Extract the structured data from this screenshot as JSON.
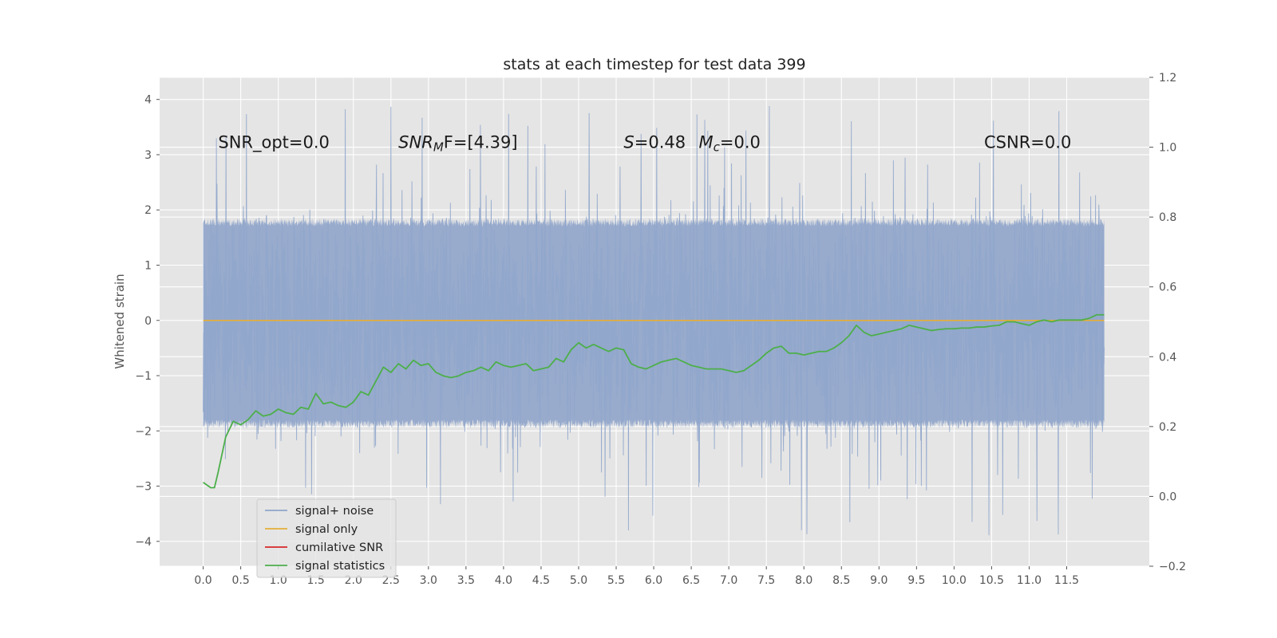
{
  "chart_data": {
    "type": "line",
    "title": "stats at each timestep for test data 399",
    "ylabel": "Whitened strain",
    "xlabel": "",
    "xlim": [
      -0.58,
      12.6
    ],
    "ylim": [
      -4.45,
      4.4
    ],
    "y2lim": [
      -0.2,
      1.2
    ],
    "grid": true,
    "legend_position": "lower-left",
    "x_ticks": [
      0.0,
      0.5,
      1.0,
      1.5,
      2.0,
      2.5,
      3.0,
      3.5,
      4.0,
      4.5,
      5.0,
      5.5,
      6.0,
      6.5,
      7.0,
      7.5,
      8.0,
      8.5,
      9.0,
      9.5,
      10.0,
      10.5,
      11.0,
      11.5
    ],
    "x_tick_labels": [
      "0.0",
      "0.5",
      "1.0",
      "1.5",
      "2.0",
      "2.5",
      "3.0",
      "3.5",
      "4.0",
      "4.5",
      "5.0",
      "5.5",
      "6.0",
      "6.5",
      "7.0",
      "7.5",
      "8.0",
      "8.5",
      "9.0",
      "9.5",
      "10.0",
      "10.5",
      "11.0",
      "11.5"
    ],
    "y_ticks": [
      -4,
      -3,
      -2,
      -1,
      0,
      1,
      2,
      3,
      4
    ],
    "y_tick_labels": [
      "−4",
      "−3",
      "−2",
      "−1",
      "0",
      "1",
      "2",
      "3",
      "4"
    ],
    "y2_ticks": [
      -0.2,
      0.0,
      0.2,
      0.4,
      0.6,
      0.8,
      1.0,
      1.2
    ],
    "y2_tick_labels": [
      "−0.2",
      "0.0",
      "0.2",
      "0.4",
      "0.6",
      "0.8",
      "1.0",
      "1.2"
    ],
    "annotations": [
      {
        "id": "snr-opt",
        "text": "SNR_opt=0.0",
        "x": 0.2,
        "y": 3.12
      },
      {
        "id": "snr-mf",
        "text": "SNR",
        "sub": "M",
        "rest": "F=[4.39]",
        "x": 2.6,
        "y": 3.12
      },
      {
        "id": "s-stat",
        "italic": "S",
        "rest": "=0.48",
        "x": 5.6,
        "y": 3.12
      },
      {
        "id": "mc-stat",
        "italic": "M",
        "sub": "c",
        "rest": "=0.0",
        "x": 6.6,
        "y": 3.12
      },
      {
        "id": "csnr",
        "text": "CSNR=0.0",
        "x": 10.4,
        "y": 3.12
      }
    ],
    "series": [
      {
        "name": "signal+ noise",
        "color": "#8fa6cb",
        "axis": "left",
        "x_range": [
          0.0,
          12.0
        ],
        "envelope_core": [
          -1.95,
          1.85
        ],
        "peak_max": 4.02,
        "peak_min": -4.08
      },
      {
        "name": "signal only",
        "color": "#e5ae38",
        "axis": "left",
        "x": [
          0.0,
          12.0
        ],
        "y": [
          0.0,
          0.0
        ]
      },
      {
        "name": "cumilative SNR",
        "color": "#d62728",
        "axis": "right",
        "x": [],
        "y": []
      },
      {
        "name": "signal statistics",
        "color": "#4daf4a",
        "axis": "right",
        "x": [
          0.0,
          0.1,
          0.15,
          0.2,
          0.3,
          0.4,
          0.5,
          0.6,
          0.7,
          0.8,
          0.9,
          1.0,
          1.1,
          1.2,
          1.3,
          1.4,
          1.5,
          1.6,
          1.7,
          1.8,
          1.9,
          2.0,
          2.1,
          2.2,
          2.3,
          2.4,
          2.5,
          2.6,
          2.7,
          2.8,
          2.9,
          3.0,
          3.1,
          3.2,
          3.3,
          3.4,
          3.5,
          3.6,
          3.7,
          3.8,
          3.9,
          4.0,
          4.1,
          4.2,
          4.3,
          4.4,
          4.5,
          4.6,
          4.7,
          4.8,
          4.9,
          5.0,
          5.1,
          5.2,
          5.3,
          5.4,
          5.5,
          5.6,
          5.7,
          5.8,
          5.9,
          6.0,
          6.1,
          6.2,
          6.3,
          6.4,
          6.5,
          6.6,
          6.7,
          6.8,
          6.9,
          7.0,
          7.1,
          7.2,
          7.3,
          7.4,
          7.5,
          7.6,
          7.7,
          7.8,
          7.9,
          8.0,
          8.1,
          8.2,
          8.3,
          8.4,
          8.5,
          8.6,
          8.7,
          8.8,
          8.9,
          9.0,
          9.1,
          9.2,
          9.3,
          9.4,
          9.5,
          9.6,
          9.7,
          9.8,
          9.9,
          10.0,
          10.1,
          10.2,
          10.3,
          10.4,
          10.5,
          10.6,
          10.7,
          10.8,
          10.9,
          11.0,
          11.1,
          11.2,
          11.3,
          11.4,
          11.5,
          11.6,
          11.7,
          11.8,
          11.9,
          12.0
        ],
        "y": [
          0.04,
          0.025,
          0.025,
          0.07,
          0.17,
          0.215,
          0.205,
          0.22,
          0.245,
          0.23,
          0.235,
          0.25,
          0.24,
          0.235,
          0.255,
          0.25,
          0.295,
          0.265,
          0.27,
          0.26,
          0.255,
          0.27,
          0.3,
          0.29,
          0.33,
          0.37,
          0.355,
          0.38,
          0.365,
          0.39,
          0.375,
          0.38,
          0.355,
          0.345,
          0.34,
          0.345,
          0.355,
          0.36,
          0.37,
          0.36,
          0.385,
          0.375,
          0.37,
          0.375,
          0.38,
          0.36,
          0.365,
          0.37,
          0.395,
          0.385,
          0.42,
          0.44,
          0.425,
          0.435,
          0.425,
          0.415,
          0.425,
          0.42,
          0.38,
          0.37,
          0.365,
          0.375,
          0.385,
          0.39,
          0.395,
          0.385,
          0.375,
          0.37,
          0.365,
          0.365,
          0.365,
          0.36,
          0.355,
          0.36,
          0.375,
          0.39,
          0.41,
          0.425,
          0.43,
          0.41,
          0.41,
          0.405,
          0.41,
          0.415,
          0.415,
          0.425,
          0.44,
          0.46,
          0.49,
          0.47,
          0.46,
          0.465,
          0.47,
          0.475,
          0.48,
          0.49,
          0.485,
          0.48,
          0.475,
          0.478,
          0.48,
          0.48,
          0.482,
          0.482,
          0.485,
          0.485,
          0.488,
          0.49,
          0.5,
          0.5,
          0.495,
          0.49,
          0.5,
          0.505,
          0.5,
          0.505,
          0.505,
          0.505,
          0.505,
          0.51,
          0.52,
          0.52
        ]
      }
    ]
  }
}
